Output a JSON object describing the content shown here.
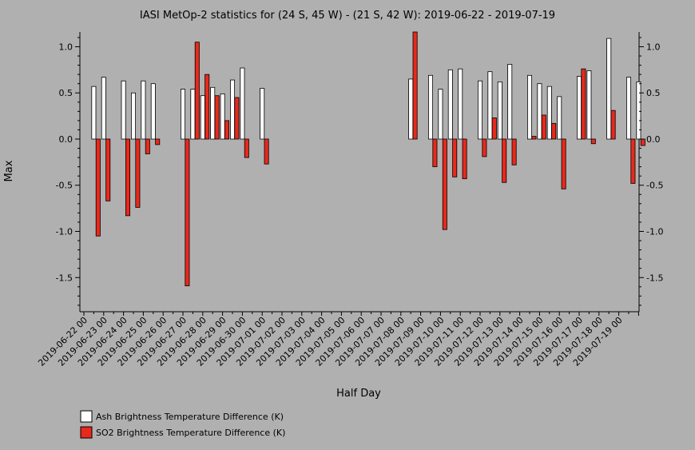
{
  "chart_data": {
    "type": "bar",
    "title": "IASI MetOp-2 statistics for (24 S, 45 W) - (21 S, 42 W): 2019-06-22 - 2019-07-19",
    "xlabel": "Half Day",
    "ylabel": "Max",
    "ylim": [
      -1.87,
      1.16
    ],
    "yticks": [
      1.0,
      0.5,
      0.0,
      -0.5,
      -1.0,
      -1.5
    ],
    "ytick_labels": [
      "1.0",
      "0.5",
      "0.0",
      "-0.5",
      "-1.0",
      "-1.5"
    ],
    "xtick_labels": [
      "2019-06-22 00",
      "2019-06-23 00",
      "2019-06-24 00",
      "2019-06-25 00",
      "2019-06-26 00",
      "2019-06-27 00",
      "2019-06-28 00",
      "2019-06-29 00",
      "2019-06-30 00",
      "2019-07-01 00",
      "2019-07-02 00",
      "2019-07-03 00",
      "2019-07-04 00",
      "2019-07-05 00",
      "2019-07-06 00",
      "2019-07-07 00",
      "2019-07-08 00",
      "2019-07-09 00",
      "2019-07-10 00",
      "2019-07-11 00",
      "2019-07-12 00",
      "2019-07-13 00",
      "2019-07-14 00",
      "2019-07-15 00",
      "2019-07-16 00",
      "2019-07-17 00",
      "2019-07-18 00",
      "2019-07-19 00"
    ],
    "grid": false,
    "legend_position": "bottom-left",
    "series": [
      {
        "name": "Ash Brightness Temperature Difference (K)",
        "color": "#ffffff",
        "values": [
          0.57,
          0.67,
          null,
          0.63,
          0.5,
          0.63,
          0.6,
          null,
          null,
          0.54,
          0.54,
          0.47,
          0.56,
          0.49,
          0.64,
          0.77,
          null,
          0.55,
          null,
          null,
          null,
          null,
          null,
          null,
          null,
          null,
          null,
          null,
          null,
          null,
          null,
          null,
          0.65,
          null,
          0.69,
          0.54,
          0.75,
          0.76,
          null,
          0.63,
          0.73,
          0.62,
          0.81,
          null,
          0.69,
          0.6,
          0.57,
          0.46,
          null,
          0.68,
          0.74,
          null,
          1.09,
          null,
          0.67,
          0.62
        ]
      },
      {
        "name": "SO2 Brightness Temperature Difference (K)",
        "color": "#e8291c",
        "values": [
          -1.05,
          -0.67,
          null,
          -0.83,
          -0.74,
          -0.16,
          -0.06,
          null,
          null,
          -1.59,
          1.05,
          0.7,
          0.47,
          0.2,
          0.45,
          -0.2,
          null,
          -0.27,
          null,
          null,
          null,
          null,
          null,
          null,
          null,
          null,
          null,
          null,
          null,
          null,
          null,
          null,
          1.16,
          null,
          -0.3,
          -0.98,
          -0.41,
          -0.43,
          null,
          -0.19,
          0.23,
          -0.47,
          -0.28,
          null,
          0.03,
          0.26,
          0.17,
          -0.54,
          null,
          0.76,
          -0.05,
          null,
          0.31,
          null,
          -0.48,
          -0.07
        ]
      }
    ]
  }
}
